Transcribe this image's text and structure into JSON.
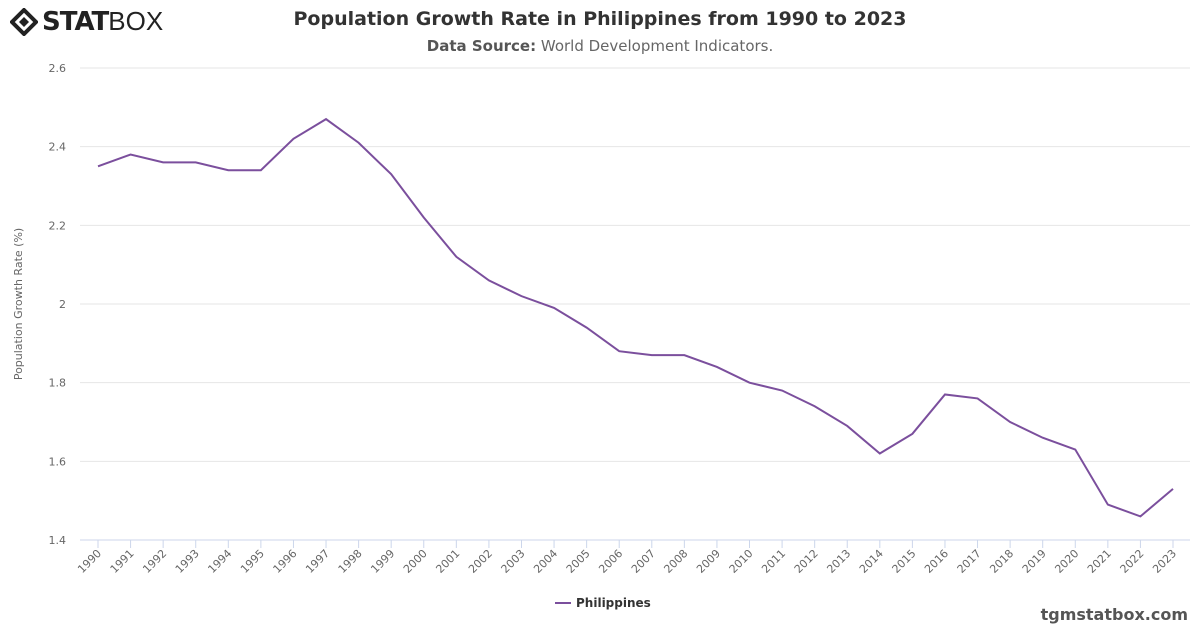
{
  "logo": {
    "bold": "STAT",
    "light": "BOX"
  },
  "title": "Population Growth Rate in Philippines from 1990 to 2023",
  "subtitle": {
    "label": "Data Source:",
    "value": "World Development Indicators."
  },
  "footer": "tgmstatbox.com",
  "chart_data": {
    "type": "line",
    "title": "Population Growth Rate in Philippines from 1990 to 2023",
    "ylabel": "Population Growth Rate (%)",
    "xlabel": "",
    "ylim": [
      1.4,
      2.6
    ],
    "yticks": [
      "1.4",
      "1.6",
      "1.8",
      "2",
      "2.2",
      "2.4",
      "2.6"
    ],
    "grid": true,
    "legend": "bottom-center",
    "color": "#7b4f9d",
    "categories": [
      "1990",
      "1991",
      "1992",
      "1993",
      "1994",
      "1995",
      "1996",
      "1997",
      "1998",
      "1999",
      "2000",
      "2001",
      "2002",
      "2003",
      "2004",
      "2005",
      "2006",
      "2007",
      "2008",
      "2009",
      "2010",
      "2011",
      "2012",
      "2013",
      "2014",
      "2015",
      "2016",
      "2017",
      "2018",
      "2019",
      "2020",
      "2021",
      "2022",
      "2023"
    ],
    "series": [
      {
        "name": "Philippines",
        "values": [
          2.35,
          2.38,
          2.36,
          2.36,
          2.34,
          2.34,
          2.42,
          2.47,
          2.41,
          2.33,
          2.22,
          2.12,
          2.06,
          2.02,
          1.99,
          1.94,
          1.88,
          1.87,
          1.87,
          1.84,
          1.8,
          1.78,
          1.74,
          1.69,
          1.62,
          1.67,
          1.77,
          1.76,
          1.7,
          1.66,
          1.63,
          1.49,
          1.46,
          1.53
        ]
      }
    ]
  }
}
